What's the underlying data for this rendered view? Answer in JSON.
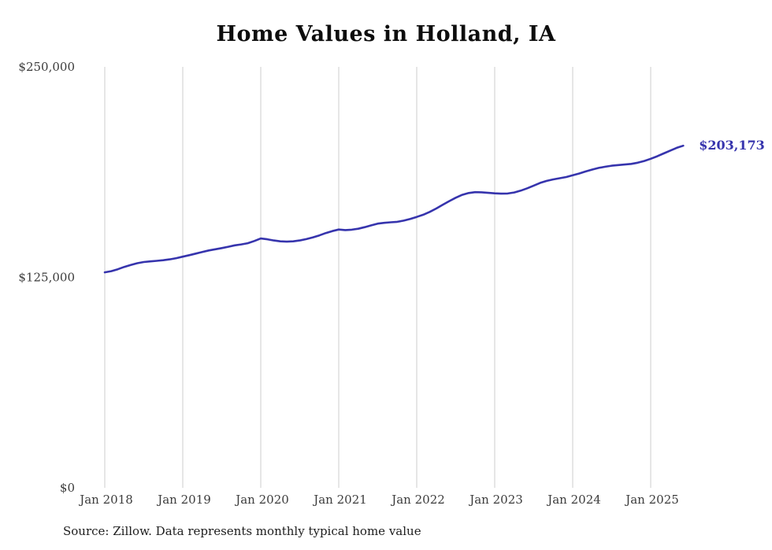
{
  "title": "Home Values in Holland, IA",
  "end_label": "$203,173",
  "source_note": "Source: Zillow. Data represents monthly typical home value",
  "colors": {
    "line": "#3634ad",
    "grid": "#cccccc",
    "axis_text": "#3c3c3c",
    "end_label": "#3634ad"
  },
  "chart_data": {
    "type": "line",
    "title": "Home Values in Holland, IA",
    "x_unit": "month",
    "x_start": "2018-01",
    "x_end": "2025-06",
    "x_tick_labels": [
      "Jan 2018",
      "Jan 2019",
      "Jan 2020",
      "Jan 2021",
      "Jan 2022",
      "Jan 2023",
      "Jan 2024",
      "Jan 2025"
    ],
    "y_ticks": [
      {
        "label": "$0",
        "value": 0
      },
      {
        "label": "$125,000",
        "value": 125000
      },
      {
        "label": "$250,000",
        "value": 250000
      }
    ],
    "ylim": [
      0,
      250000
    ],
    "grid": "vertical-only",
    "legend": "none",
    "series": [
      {
        "name": "Typical home value",
        "values": [
          128000,
          128700,
          129800,
          131200,
          132400,
          133400,
          134100,
          134500,
          134800,
          135200,
          135700,
          136400,
          137300,
          138200,
          139100,
          140100,
          141000,
          141700,
          142400,
          143200,
          144000,
          144600,
          145300,
          146600,
          148100,
          147600,
          146900,
          146400,
          146200,
          146400,
          146900,
          147700,
          148700,
          149900,
          151300,
          152500,
          153400,
          153100,
          153300,
          153900,
          154800,
          155900,
          156900,
          157400,
          157700,
          158000,
          158700,
          159700,
          160900,
          162200,
          163900,
          165900,
          168100,
          170300,
          172300,
          174000,
          175100,
          175600,
          175500,
          175200,
          174900,
          174700,
          174800,
          175400,
          176500,
          177900,
          179500,
          181100,
          182300,
          183200,
          183900,
          184600,
          185600,
          186700,
          187900,
          189000,
          190000,
          190700,
          191300,
          191700,
          192000,
          192400,
          193100,
          194100,
          195400,
          196900,
          198600,
          200300,
          201900,
          203173
        ]
      }
    ],
    "annotations": [
      {
        "text": "$203,173",
        "attached_to": "last-point"
      }
    ]
  }
}
